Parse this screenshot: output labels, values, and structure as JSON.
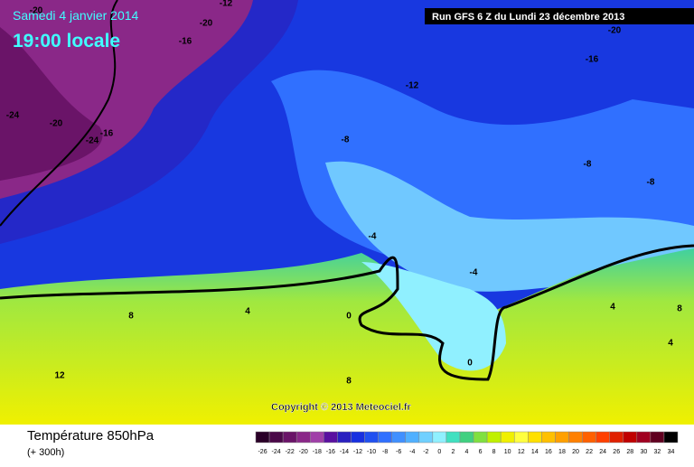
{
  "header": {
    "date": "Samedi 4 janvier 2014",
    "time": "19:00 locale",
    "run": "Run GFS 6 Z du Lundi 23 décembre 2013"
  },
  "map": {
    "contour_labels": [
      "-20",
      "-12",
      "-20",
      "-16",
      "-20",
      "-16",
      "-12",
      "-24",
      "-20",
      "-24",
      "-16",
      "-8",
      "-8",
      "-8",
      "-4",
      "-4",
      "0",
      "0",
      "8",
      "4",
      "12",
      "8",
      "4",
      "4",
      "8"
    ],
    "copyright": "Copyright © 2013 Meteociel.fr"
  },
  "footer": {
    "title": "Température 850hPa",
    "subtitle": "(+ 300h)"
  },
  "legend": {
    "labels": [
      "-26",
      "-24",
      "-22",
      "-20",
      "-18",
      "-16",
      "-14",
      "-12",
      "-10",
      "-8",
      "-6",
      "-4",
      "-2",
      "0",
      "2",
      "4",
      "6",
      "8",
      "10",
      "12",
      "14",
      "16",
      "18",
      "20",
      "22",
      "24",
      "26",
      "28",
      "30",
      "32",
      "34"
    ],
    "colors": [
      "#2a0028",
      "#4a0848",
      "#6a1468",
      "#8a2888",
      "#a040a8",
      "#5a10a0",
      "#2a20c0",
      "#1830e0",
      "#2050f0",
      "#3070ff",
      "#4090ff",
      "#50b0ff",
      "#70d0ff",
      "#90f0ff",
      "#40e0c0",
      "#40d080",
      "#80e040",
      "#c0f000",
      "#f0f000",
      "#ffff40",
      "#ffe000",
      "#ffc000",
      "#ffa000",
      "#ff8000",
      "#ff6000",
      "#ff4000",
      "#e02000",
      "#c00000",
      "#a00020",
      "#600020",
      "#000000"
    ]
  }
}
